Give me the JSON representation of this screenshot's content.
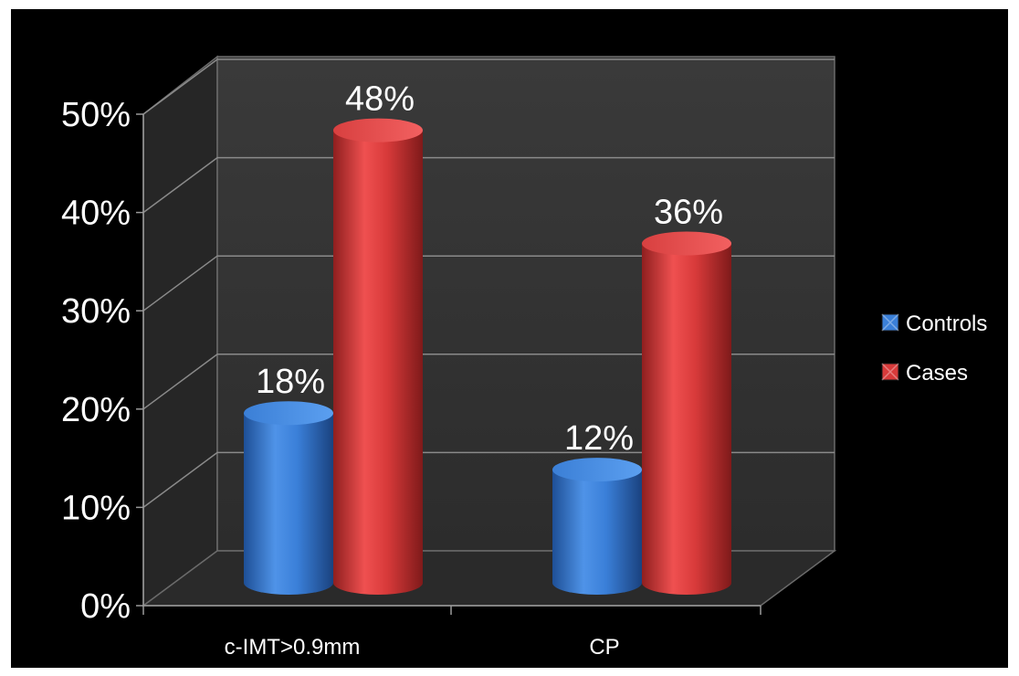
{
  "chart_data": {
    "type": "bar",
    "style": "3d-cylinder",
    "categories": [
      "c-IMT>0.9mm",
      "CP"
    ],
    "series": [
      {
        "name": "Controls",
        "values": [
          18,
          12
        ],
        "color": "#3a7fd8"
      },
      {
        "name": "Cases",
        "values": [
          48,
          36
        ],
        "color": "#d83a3a"
      }
    ],
    "data_labels": [
      [
        "18%",
        "12%"
      ],
      [
        "48%",
        "36%"
      ]
    ],
    "y_ticks": [
      "0%",
      "10%",
      "20%",
      "30%",
      "40%",
      "50%"
    ],
    "ylim": [
      0,
      50
    ],
    "grid": true,
    "legend_position": "right",
    "background": "#000000",
    "wall_color": "#333333",
    "floor_color": "#2a2a2a",
    "gridline_color": "#8a8a8a"
  }
}
